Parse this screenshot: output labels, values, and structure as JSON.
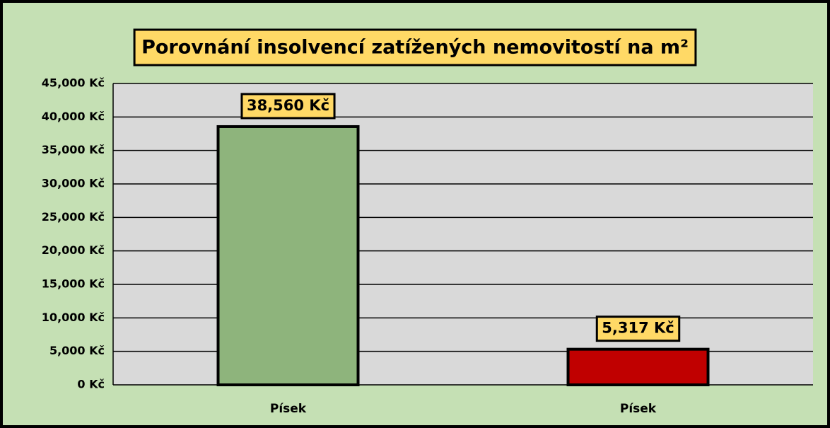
{
  "chart_data": {
    "type": "bar",
    "title": "Porovnání insolvencí zatížených nemovitostí na m²",
    "categories": [
      "Písek",
      "Písek"
    ],
    "values": [
      38560,
      5317
    ],
    "value_labels": [
      "38,560 Kč",
      "5,317 Kč"
    ],
    "colors": [
      "#8eb47c",
      "#c00000"
    ],
    "ylim": [
      0,
      45000
    ],
    "yticks": [
      {
        "value": 0,
        "label": "0 Kč"
      },
      {
        "value": 5000,
        "label": "5,000 Kč"
      },
      {
        "value": 10000,
        "label": "10,000 Kč"
      },
      {
        "value": 15000,
        "label": "15,000 Kč"
      },
      {
        "value": 20000,
        "label": "20,000 Kč"
      },
      {
        "value": 25000,
        "label": "25,000 Kč"
      },
      {
        "value": 30000,
        "label": "30,000 Kč"
      },
      {
        "value": 35000,
        "label": "35,000 Kč"
      },
      {
        "value": 40000,
        "label": "40,000 Kč"
      },
      {
        "value": 45000,
        "label": "45,000 Kč"
      }
    ],
    "grid": true
  }
}
